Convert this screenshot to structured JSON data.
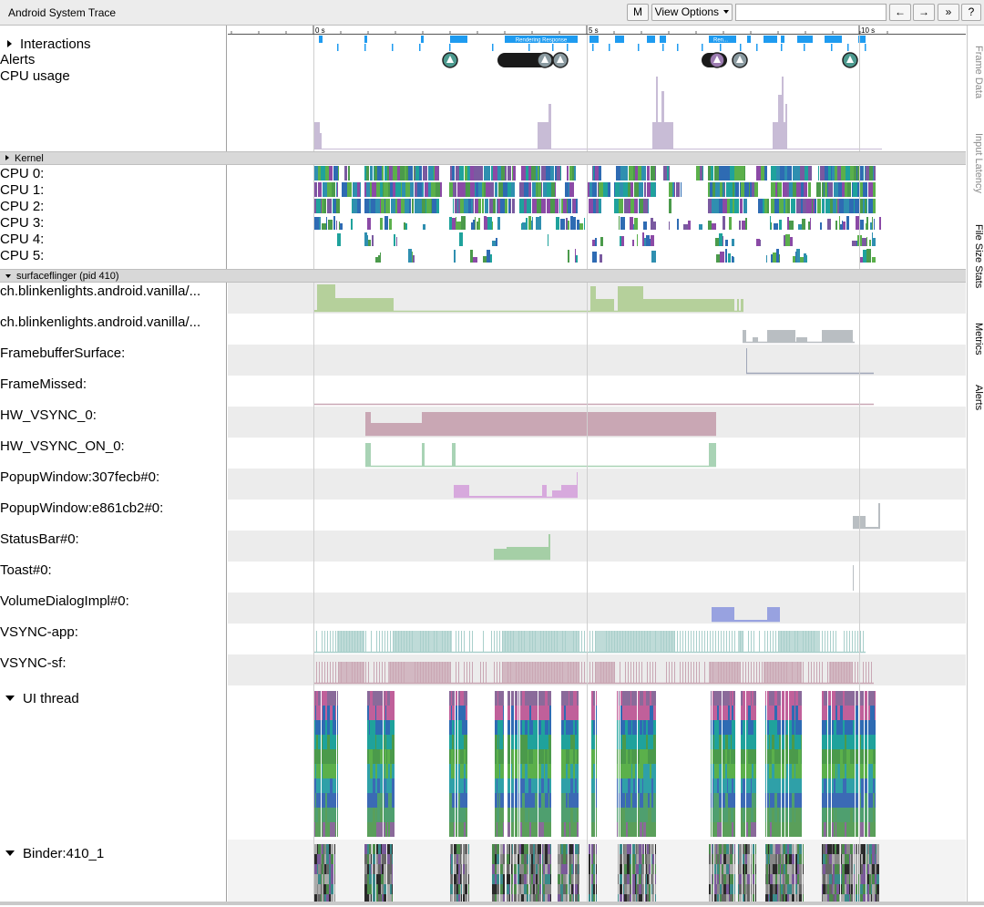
{
  "toolbar": {
    "title": "Android System Trace",
    "m_label": "M",
    "view_options_label": "View Options",
    "back_label": "←",
    "forward_label": "→",
    "expand_label": "»",
    "help_label": "?"
  },
  "timeline": {
    "ticks": [
      "0 s",
      "5 s",
      "10 s"
    ]
  },
  "tracks": {
    "interactions": "Interactions",
    "alerts": "Alerts",
    "cpu_usage": "CPU usage",
    "kernel": "Kernel",
    "cpus": [
      "CPU 0:",
      "CPU 1:",
      "CPU 2:",
      "CPU 3:",
      "CPU 4:",
      "CPU 5:"
    ],
    "surfaceflinger": "surfaceflinger (pid 410)",
    "counters": [
      "ch.blinkenlights.android.vanilla/...",
      "ch.blinkenlights.android.vanilla/...",
      "FramebufferSurface:",
      "FrameMissed:",
      "HW_VSYNC_0:",
      "HW_VSYNC_ON_0:",
      "PopupWindow:307fecb#0:",
      "PopupWindow:e861cb2#0:",
      "StatusBar#0:",
      "Toast#0:",
      "VolumeDialogImpl#0:",
      "VSYNC-app:",
      "VSYNC-sf:"
    ],
    "ui_thread": "UI thread",
    "binder": "Binder:410_1"
  },
  "interaction_labels": [
    "Rendering Response",
    "Ren..."
  ],
  "side_tabs": [
    "Frame Data",
    "Input Latency",
    "File Size Stats",
    "Metrics",
    "Alerts"
  ],
  "colors": {
    "interaction": "#1e9bf0",
    "cpu_usage": "#c8bcd6",
    "vanilla1": "#b5d09b",
    "gray": "#b9bec2",
    "vsync": "#c9a7b4",
    "hw_on": "#a9d3b5",
    "popup1": "#d7a9dd",
    "statusbar": "#a5cfa6",
    "volume": "#98a2e0",
    "vsync_app": "#a9cfcb",
    "vsync_sf": "#c9a7b4",
    "cpu_palette": [
      "#2e6bb3",
      "#1fa29c",
      "#4b9a4b",
      "#8b4aa6",
      "#5bb04b",
      "#2f8fb0",
      "#7a5aa0"
    ]
  }
}
